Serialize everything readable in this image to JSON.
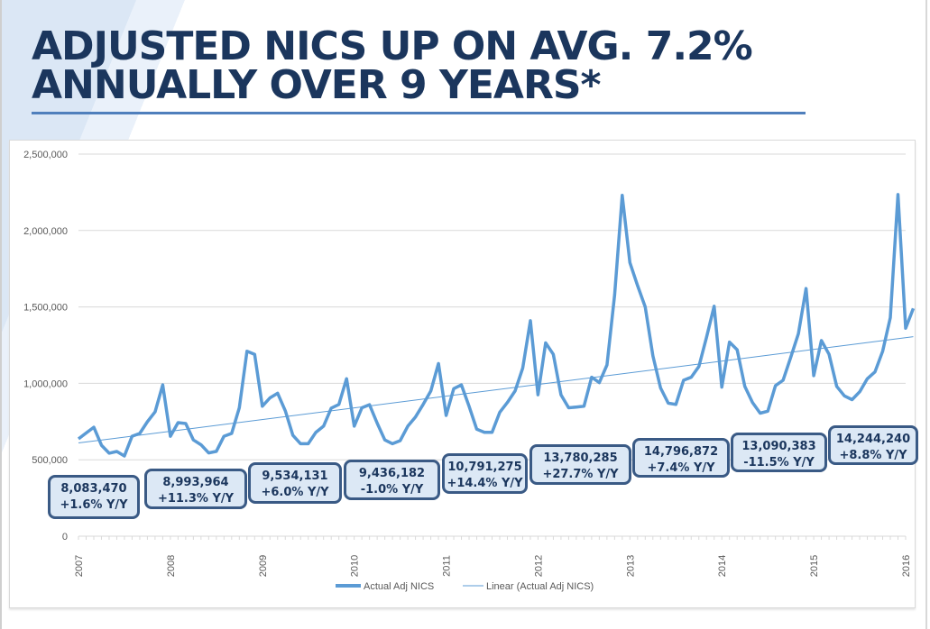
{
  "slide": {
    "title_line1": "ADJUSTED NICS UP ON AVG. 7.2%",
    "title_line2": "ANNUALLY OVER 9 YEARS*"
  },
  "callouts": [
    {
      "total": "8,083,470",
      "change": "+1.6% Y/Y"
    },
    {
      "total": "8,993,964",
      "change": "+11.3% Y/Y"
    },
    {
      "total": "9,534,131",
      "change": "+6.0% Y/Y"
    },
    {
      "total": "9,436,182",
      "change": "-1.0% Y/Y"
    },
    {
      "total": "10,791,275",
      "change": "+14.4% Y/Y"
    },
    {
      "total": "13,780,285",
      "change": "+27.7% Y/Y"
    },
    {
      "total": "14,796,872",
      "change": "+7.4% Y/Y"
    },
    {
      "total": "13,090,383",
      "change": "-11.5% Y/Y"
    },
    {
      "total": "14,244,240",
      "change": "+8.8% Y/Y"
    }
  ],
  "chart_data": {
    "type": "line",
    "title": "ADJUSTED NICS UP ON AVG. 7.2% ANNUALLY OVER 9 YEARS*",
    "xlabel": "",
    "ylabel": "",
    "ylim": [
      0,
      2500000
    ],
    "yticks": [
      0,
      500000,
      1000000,
      1500000,
      2000000,
      2500000
    ],
    "ytick_labels": [
      "0",
      "500,000",
      "1,000,000",
      "1,500,000",
      "2,000,000",
      "2,500,000"
    ],
    "xticks": [
      "2007",
      "2008",
      "2009",
      "2010",
      "2011",
      "2012",
      "2013",
      "2014",
      "2015",
      "2016"
    ],
    "x_unit": "month",
    "grid": true,
    "legend_position": "bottom",
    "series": [
      {
        "name": "Actual Adj NICS",
        "color": "#5b9bd5",
        "start": "2007-01",
        "values": [
          637000,
          675000,
          713000,
          595000,
          543000,
          554000,
          525000,
          654000,
          672000,
          749000,
          813000,
          990000,
          654000,
          743000,
          737000,
          630000,
          598000,
          545000,
          555000,
          654000,
          672000,
          840000,
          1210000,
          1190000,
          850000,
          905000,
          935000,
          820000,
          660000,
          605000,
          605000,
          680000,
          720000,
          838000,
          862000,
          1030000,
          720000,
          840000,
          860000,
          740000,
          630000,
          605000,
          625000,
          720000,
          780000,
          862000,
          950000,
          1130000,
          790000,
          965000,
          990000,
          850000,
          700000,
          680000,
          680000,
          810000,
          875000,
          950000,
          1100000,
          1410000,
          925000,
          1265000,
          1190000,
          925000,
          840000,
          845000,
          850000,
          1040000,
          1005000,
          1120000,
          1580000,
          2230000,
          1790000,
          1640000,
          1500000,
          1180000,
          970000,
          870000,
          862000,
          1020000,
          1040000,
          1110000,
          1300000,
          1505000,
          975000,
          1270000,
          1220000,
          980000,
          875000,
          805000,
          818000,
          985000,
          1020000,
          1170000,
          1325000,
          1620000,
          1050000,
          1280000,
          1190000,
          980000,
          918000,
          893000,
          945000,
          1030000,
          1075000,
          1210000,
          1430000,
          2235000,
          1360000,
          1490000
        ]
      },
      {
        "name": "Linear (Actual Adj NICS)",
        "color": "#5b9bd5",
        "type": "trendline",
        "values_endpoints": [
          610000,
          1305000
        ]
      }
    ]
  }
}
